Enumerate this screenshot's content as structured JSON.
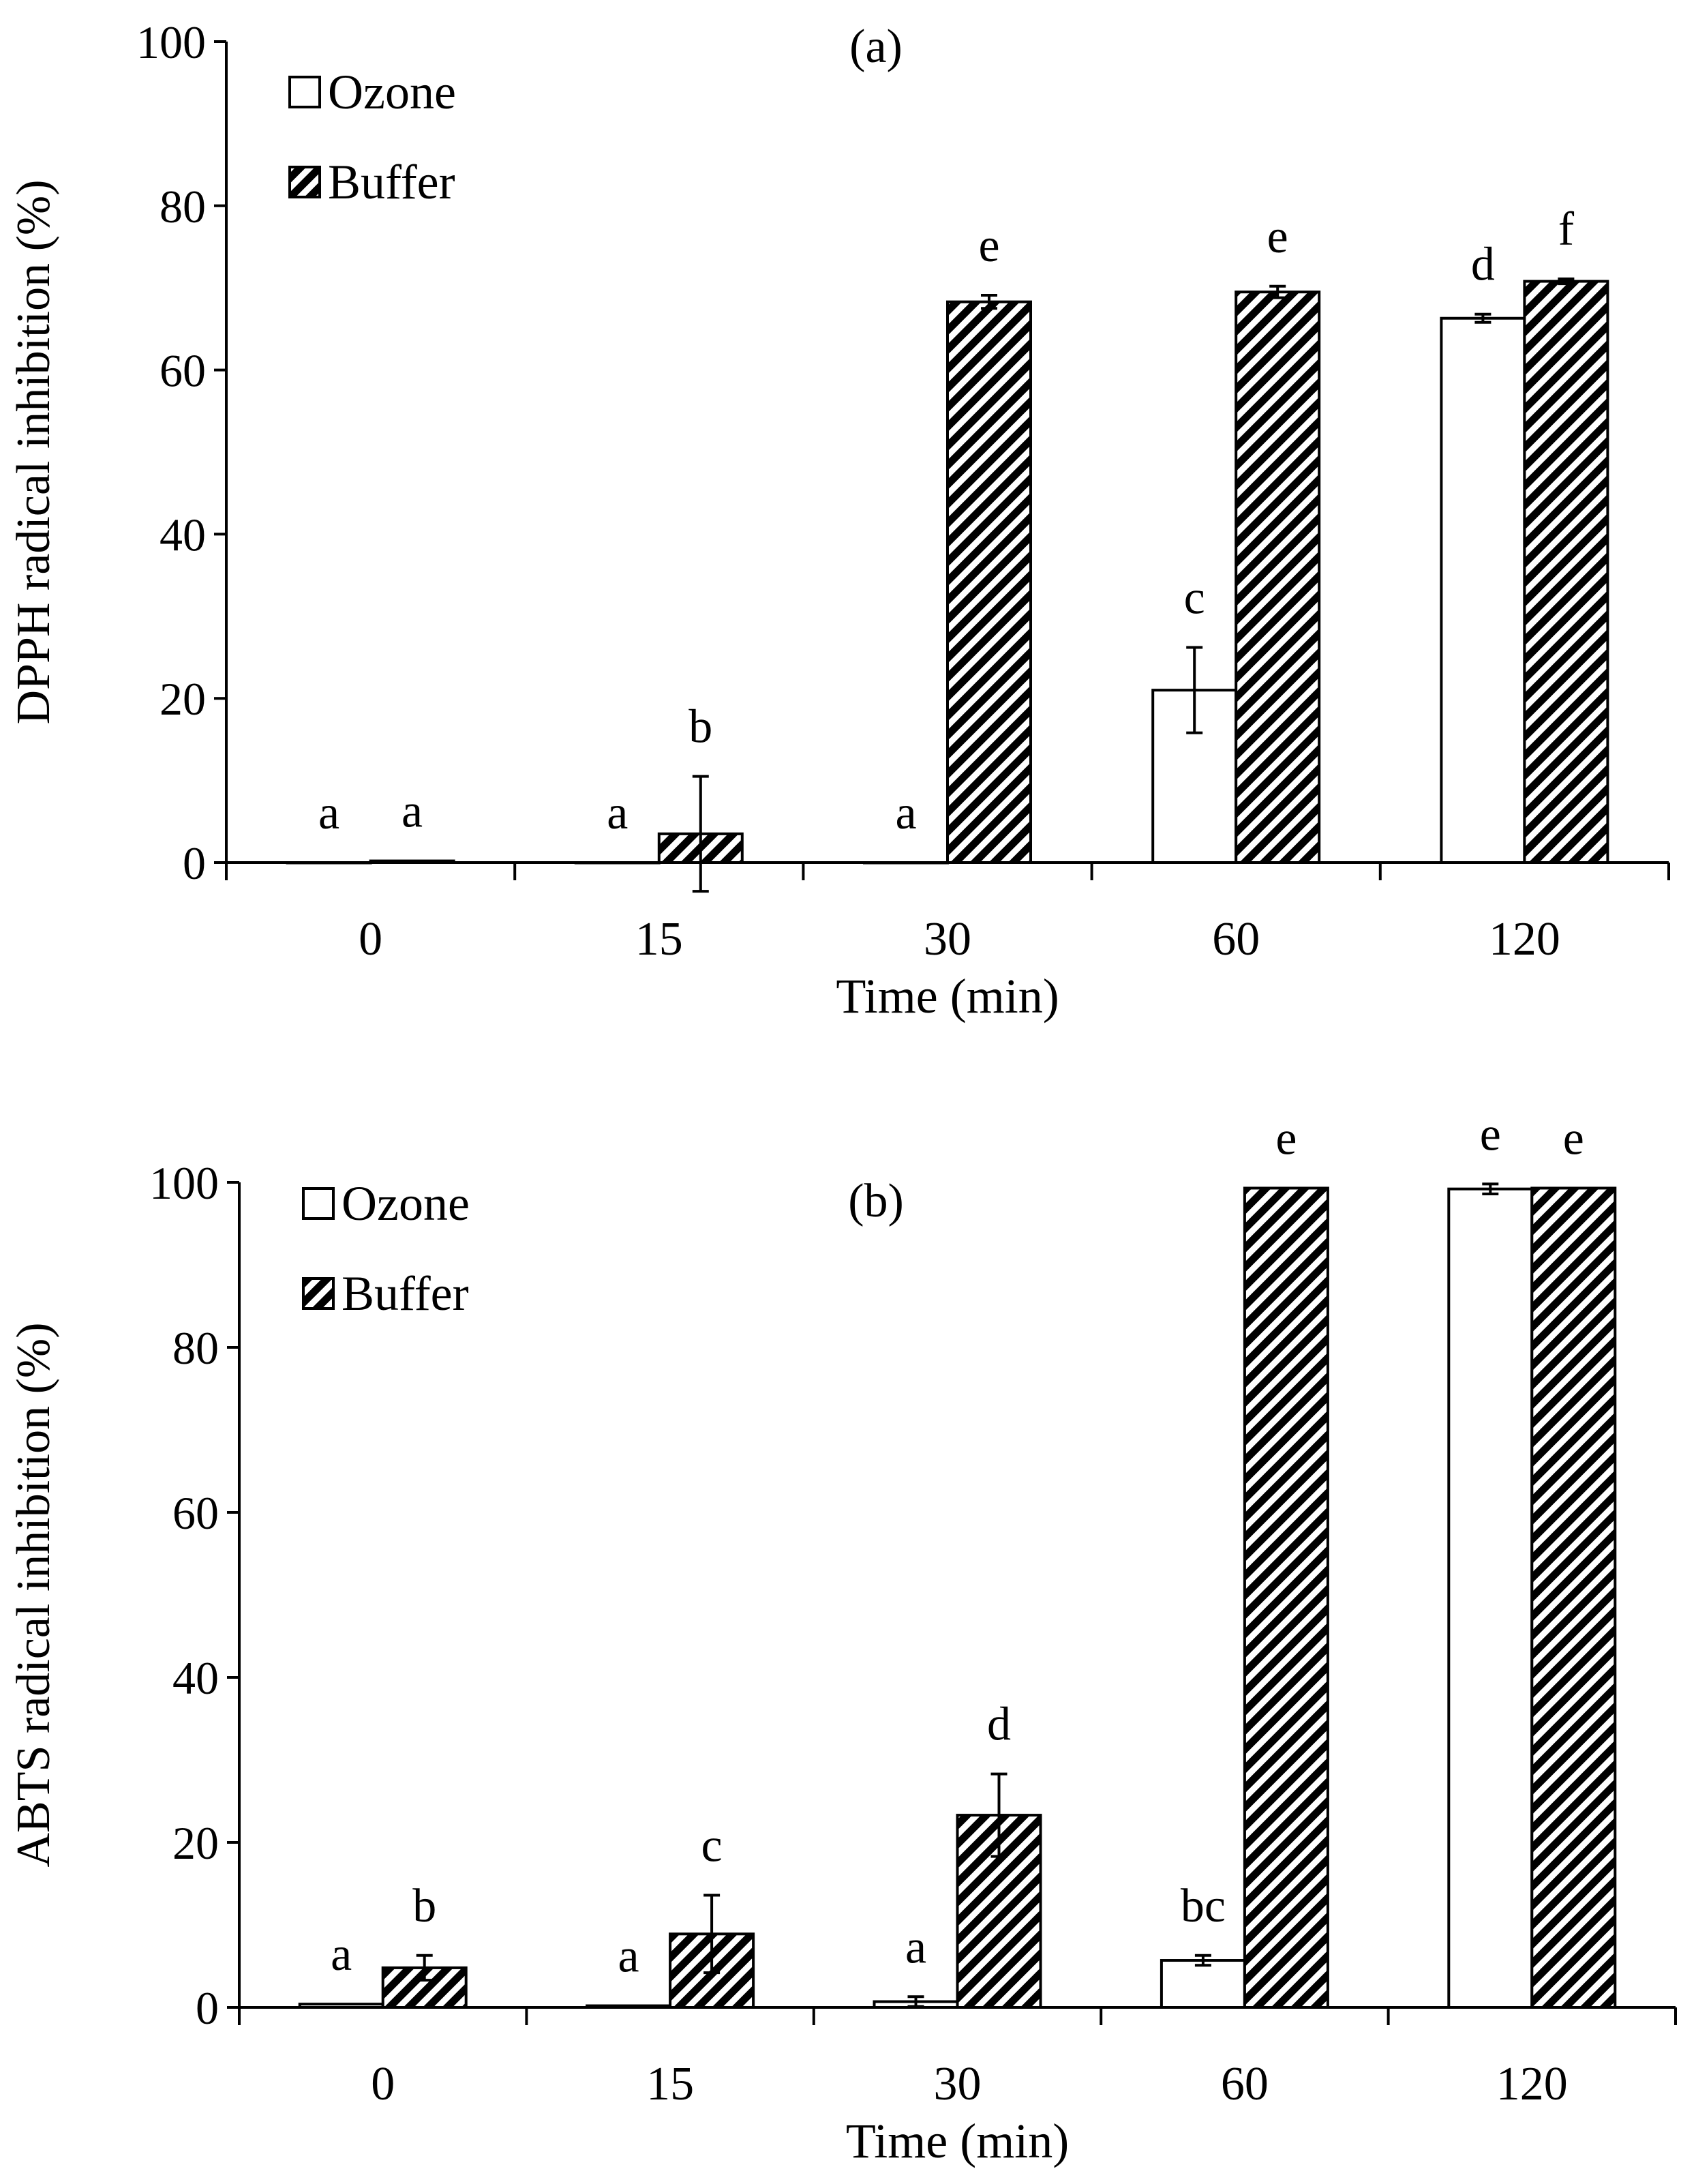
{
  "chart_data": [
    {
      "type": "bar",
      "panel_label": "(a)",
      "xlabel": "Time (min)",
      "ylabel": "DPPH radical inhibition (%)",
      "categories": [
        "0",
        "15",
        "30",
        "60",
        "120"
      ],
      "ylim": [
        0,
        100
      ],
      "yticks": [
        "0",
        "20",
        "40",
        "60",
        "80",
        "100"
      ],
      "grid": false,
      "legend_position": "top-left",
      "series": [
        {
          "name": "Ozone",
          "fill": "white",
          "values": [
            0,
            0,
            0,
            21.0,
            66.3
          ],
          "errors": [
            0,
            0,
            0,
            5.2,
            0.5
          ],
          "letters": [
            "a",
            "a",
            "a",
            "c",
            "d"
          ]
        },
        {
          "name": "Buffer",
          "fill": "hatched",
          "values": [
            0.2,
            3.5,
            68.3,
            69.5,
            70.8
          ],
          "errors": [
            0,
            7.0,
            0.8,
            0.7,
            0.3
          ],
          "letters": [
            "a",
            "b",
            "e",
            "e",
            "f"
          ]
        }
      ]
    },
    {
      "type": "bar",
      "panel_label": "(b)",
      "xlabel": "Time (min)",
      "ylabel": "ABTS radical inhibition (%)",
      "categories": [
        "0",
        "15",
        "30",
        "60",
        "120"
      ],
      "ylim": [
        0,
        100
      ],
      "yticks": [
        "0",
        "20",
        "40",
        "60",
        "80",
        "100"
      ],
      "grid": false,
      "legend_position": "top-left",
      "series": [
        {
          "name": "Ozone",
          "fill": "white",
          "values": [
            0.4,
            0.2,
            0.7,
            5.7,
            99.2
          ],
          "errors": [
            0,
            0,
            0.6,
            0.6,
            0.6
          ],
          "letters": [
            "a",
            "a",
            "a",
            "bc",
            "e"
          ]
        },
        {
          "name": "Buffer",
          "fill": "hatched",
          "values": [
            4.8,
            8.9,
            23.3,
            99.3,
            99.3
          ],
          "errors": [
            1.5,
            4.7,
            5.0,
            0,
            0
          ],
          "letters": [
            "b",
            "c",
            "d",
            "e",
            "e"
          ]
        }
      ]
    }
  ]
}
